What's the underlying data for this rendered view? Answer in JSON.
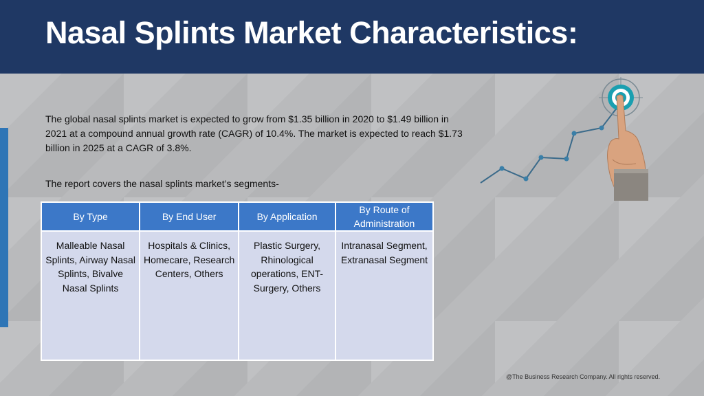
{
  "title": "Nasal Splints Market Characteristics:",
  "paragraph": "The global nasal splints market is expected to grow from $1.35 billion in 2020 to $1.49 billion in 2021 at a compound annual growth rate (CAGR) of 10.4%. The market is expected to reach $1.73 billion in 2025 at a CAGR of 3.8%.",
  "segments_intro": "The report covers the nasal splints market’s segments-",
  "table": {
    "headers": [
      "By Type",
      "By End User",
      "By Application",
      "By Route of Administration"
    ],
    "cells": [
      "Malleable Nasal Splints, Airway Nasal Splints, Bivalve Nasal Splints",
      "Hospitals & Clinics, Homecare, Research Centers, Others",
      "Plastic Surgery, Rhinological operations, ENT-Surgery, Others",
      "Intranasal Segment, Extranasal Segment"
    ]
  },
  "footer": "@The Business Research Company. All rights reserved.",
  "colors": {
    "header_bg": "#1f3864",
    "table_header": "#3c78c8",
    "table_cell": "#d4d9ec",
    "accent_bar": "#2e75b6",
    "trend_line": "#3a6a8a"
  },
  "graphic": {
    "icons": [
      "growth-trend-line-icon",
      "target-icon",
      "pointing-hand-icon"
    ]
  }
}
